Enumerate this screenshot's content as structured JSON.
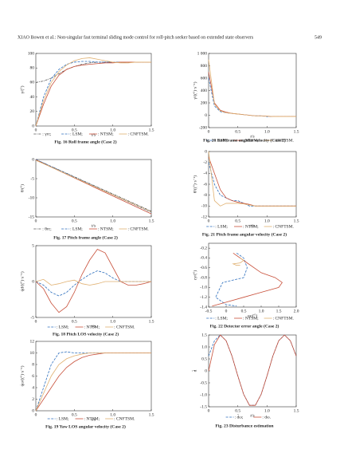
{
  "header": {
    "title": "XIAO Bowen et al.: Non-singular fast terminal sliding mode control for roll-pitch seeker based on extended state observers",
    "page": "549"
  },
  "chart_data": [
    {
      "type": "line",
      "caption": "Fig. 16   Roll frame angle (Case 2)",
      "xlabel": "t/s",
      "ylabel": "γ/(°)",
      "x": [
        0,
        0.1,
        0.2,
        0.3,
        0.4,
        0.5,
        0.6,
        0.7,
        0.8,
        0.9,
        1.0,
        1.1,
        1.2,
        1.3,
        1.4,
        1.5
      ],
      "series": [
        {
          "name": ": γrc;",
          "color": "#555555",
          "style": "dashdot",
          "values": [
            60,
            62,
            66,
            72,
            78,
            82,
            85,
            87,
            88,
            88,
            88,
            88,
            88,
            88,
            88,
            88
          ]
        },
        {
          "name": ": LSM;",
          "color": "#2e6fbd",
          "style": "dashed",
          "values": [
            0,
            40,
            65,
            78,
            85,
            88,
            89,
            89,
            88,
            88,
            88,
            88,
            88,
            88,
            88,
            88
          ]
        },
        {
          "name": ": NTSM;",
          "color": "#c8503a",
          "style": "solid",
          "values": [
            0,
            30,
            55,
            70,
            78,
            82,
            84,
            85,
            86,
            87,
            87,
            88,
            88,
            88,
            88,
            88
          ]
        },
        {
          "name": ": CNFTSM.",
          "color": "#e0b070",
          "style": "solid",
          "values": [
            0,
            35,
            60,
            75,
            84,
            90,
            93,
            94,
            92,
            90,
            88,
            87,
            87,
            88,
            88,
            88
          ]
        }
      ],
      "xlim": [
        0,
        1.5
      ],
      "xticks": [
        0,
        0.5,
        {
          "value": 1,
          "label": "1.0"
        },
        1.5
      ],
      "ylim": [
        0,
        100
      ],
      "yticks": [
        0,
        20,
        40,
        60,
        80,
        100
      ]
    },
    {
      "type": "line",
      "caption": "Fig. 17   Pitch frame angle (Case 2)",
      "xlabel": "t/s",
      "ylabel": "θ/(°)",
      "x": [
        0,
        0.1,
        0.2,
        0.3,
        0.4,
        0.5,
        0.6,
        0.7,
        0.8,
        0.9,
        1.0,
        1.1,
        1.2,
        1.3,
        1.4,
        1.5
      ],
      "series": [
        {
          "name": ": θrc;",
          "color": "#555555",
          "style": "dashdot",
          "values": [
            0,
            -0.9,
            -1.8,
            -2.7,
            -3.6,
            -4.5,
            -5.4,
            -6.3,
            -7.2,
            -8.1,
            -9,
            -9.9,
            -10.8,
            -11.7,
            -12.6,
            -13.5
          ]
        },
        {
          "name": ": LSM;",
          "color": "#2e6fbd",
          "style": "dashed",
          "values": [
            0,
            -0.92,
            -1.84,
            -2.76,
            -3.68,
            -4.6,
            -5.52,
            -6.44,
            -7.36,
            -8.28,
            -9.2,
            -10.12,
            -11.04,
            -11.96,
            -12.88,
            -13.8
          ]
        },
        {
          "name": ": NTSM;",
          "color": "#c8503a",
          "style": "solid",
          "values": [
            -0.1,
            -1.04,
            -1.98,
            -2.92,
            -3.86,
            -4.8,
            -5.74,
            -6.68,
            -7.62,
            -8.56,
            -9.5,
            -10.44,
            -11.38,
            -12.32,
            -13.26,
            -14.2
          ]
        },
        {
          "name": ": CNFTSM.",
          "color": "#e0b070",
          "style": "solid",
          "values": [
            -0.2,
            -1.1,
            -2,
            -2.9,
            -3.8,
            -4.7,
            -5.6,
            -6.5,
            -7.4,
            -8.3,
            -9.2,
            -10.1,
            -11,
            -11.9,
            -12.8,
            -13.7
          ]
        }
      ],
      "xlim": [
        0,
        1.5
      ],
      "xticks": [
        0,
        0.5,
        {
          "value": 1,
          "label": "1.0"
        },
        1.5
      ],
      "ylim": [
        -15,
        0
      ],
      "yticks": [
        -15,
        -10,
        -5,
        0
      ]
    },
    {
      "type": "line",
      "caption": "Fig. 18   Pitch LOS velocity (Case 2)",
      "xlabel": "t/s",
      "ylabel": "q̇d/((°)·s⁻¹)",
      "x": [
        0,
        0.1,
        0.2,
        0.3,
        0.4,
        0.5,
        0.6,
        0.7,
        0.8,
        0.9,
        1.0,
        1.1,
        1.2,
        1.3,
        1.4,
        1.5
      ],
      "series": [
        {
          "name": ": LSM;",
          "color": "#2e6fbd",
          "style": "dashed",
          "values": [
            0,
            -0.5,
            -1.5,
            -2,
            -1.5,
            -0.5,
            0.3,
            1,
            1.5,
            1.2,
            0.5,
            0,
            0,
            0,
            0,
            0
          ]
        },
        {
          "name": ": NTSM;",
          "color": "#c8503a",
          "style": "solid",
          "values": [
            0,
            -1,
            -3,
            -4.3,
            -3.5,
            -1.5,
            1,
            3,
            4.5,
            4,
            2,
            0,
            -0.5,
            -0.5,
            -0.3,
            0
          ]
        },
        {
          "name": ": CNFTSM.",
          "color": "#e0b070",
          "style": "solid",
          "values": [
            0,
            0.3,
            -0.5,
            -0.3,
            0,
            0.2,
            -0.3,
            -0.5,
            -0.3,
            0,
            0,
            0,
            0,
            0,
            0,
            0
          ]
        }
      ],
      "xlim": [
        0,
        1.5
      ],
      "xticks": [
        0,
        0.5,
        {
          "value": 1,
          "label": "1.0"
        },
        1.5
      ],
      "ylim": [
        -5,
        5
      ],
      "yticks": [
        -5,
        0,
        5
      ]
    },
    {
      "type": "line",
      "caption": "Fig. 19   Yaw LOS angular velocity (Case 2)",
      "xlabel": "t/s",
      "ylabel": "q̇ω/((°)·s⁻¹)",
      "x": [
        0,
        0.1,
        0.2,
        0.3,
        0.4,
        0.5,
        0.6,
        0.7,
        0.8,
        0.9,
        1.0,
        1.1,
        1.2,
        1.3,
        1.4,
        1.5
      ],
      "series": [
        {
          "name": ": LSM;",
          "color": "#2e6fbd",
          "style": "dashed",
          "values": [
            0,
            4,
            8,
            10,
            10.2,
            10,
            10,
            10,
            10,
            10,
            10,
            10,
            10,
            10,
            10,
            10
          ]
        },
        {
          "name": ": NTSM;",
          "color": "#c8503a",
          "style": "solid",
          "values": [
            0,
            2,
            4,
            6,
            7.5,
            8.5,
            9.2,
            9.6,
            9.8,
            10,
            10,
            10,
            10,
            10,
            10,
            10
          ]
        },
        {
          "name": ": CNFTSM.",
          "color": "#e0b070",
          "style": "solid",
          "values": [
            0,
            3,
            6,
            8,
            9,
            9.5,
            9.8,
            10,
            10,
            10,
            10,
            10,
            10,
            10,
            10,
            10
          ]
        }
      ],
      "xlim": [
        0,
        1.5
      ],
      "xticks": [
        0,
        0.5,
        {
          "value": 1,
          "label": "1.0"
        },
        1.5
      ],
      "ylim": [
        0,
        12
      ],
      "yticks": [
        0,
        2,
        4,
        6,
        8,
        10,
        12
      ]
    },
    {
      "type": "line",
      "caption": "Fig. 20   Roll frame angular velocity (Case 2)",
      "xlabel": "t/s",
      "ylabel": "γ̇/((°)·s⁻¹)",
      "x": [
        0,
        0.1,
        0.2,
        0.3,
        0.4,
        0.5,
        0.6,
        0.7,
        0.8,
        0.9,
        1.0,
        1.1,
        1.2,
        1.3,
        1.4,
        1.5
      ],
      "series": [
        {
          "name": ": LSM;",
          "color": "#2e6fbd",
          "style": "dashed",
          "values": [
            600,
            150,
            60,
            40,
            30,
            20,
            10,
            0,
            -10,
            -10,
            -20,
            -20,
            -20,
            -20,
            -20,
            -20
          ]
        },
        {
          "name": ": NTSM;",
          "color": "#c8503a",
          "style": "solid",
          "values": [
            700,
            200,
            80,
            50,
            30,
            20,
            10,
            0,
            -10,
            -10,
            -15,
            -20,
            -20,
            -20,
            -20,
            -20
          ]
        },
        {
          "name": ": CNFTSM.",
          "color": "#e0b070",
          "style": "solid",
          "values": [
            900,
            180,
            70,
            40,
            30,
            20,
            10,
            0,
            -10,
            -10,
            -15,
            -20,
            -20,
            -20,
            -20,
            -20
          ]
        }
      ],
      "xlim": [
        0,
        1.5
      ],
      "xticks": [
        0,
        0.5,
        {
          "value": 1,
          "label": "1.0"
        },
        1.5
      ],
      "ylim": [
        -200,
        1000
      ],
      "yticks": [
        -200,
        0,
        200,
        400,
        600,
        800,
        {
          "value": 1000,
          "label": "1 000"
        }
      ]
    },
    {
      "type": "line",
      "caption": "Fig. 21   Pitch frame angular velocity (Case 2)",
      "xlabel": "t/s",
      "ylabel": "θ̇/((°)·s⁻¹)",
      "x": [
        0,
        0.1,
        0.2,
        0.3,
        0.4,
        0.5,
        0.6,
        0.7,
        0.8,
        0.9,
        1.0,
        1.1,
        1.2,
        1.3,
        1.4,
        1.5
      ],
      "series": [
        {
          "name": ": LSM;",
          "color": "#2e6fbd",
          "style": "dashed",
          "values": [
            -2,
            -6,
            -8,
            -8.5,
            -9,
            -9,
            -9.5,
            -10,
            -10,
            -10,
            -10,
            -10,
            -10,
            -10,
            -10,
            -10
          ]
        },
        {
          "name": ": NTSM;",
          "color": "#c8503a",
          "style": "solid",
          "values": [
            -1,
            -4,
            -7,
            -8.5,
            -9,
            -9.3,
            -9.5,
            -9.7,
            -10,
            -10,
            -10,
            -10,
            -10,
            -10,
            -10,
            -10
          ]
        },
        {
          "name": ": CNFTSM.",
          "color": "#e0b070",
          "style": "solid",
          "values": [
            0,
            -9,
            -10,
            -9.5,
            -9.5,
            -9.5,
            -9.6,
            -9.8,
            -10,
            -10,
            -10,
            -10,
            -10,
            -10,
            -10,
            -10
          ]
        }
      ],
      "xlim": [
        0,
        1.5
      ],
      "xticks": [
        0,
        0.5,
        {
          "value": 1,
          "label": "1.0"
        },
        1.5
      ],
      "ylim": [
        -12,
        0
      ],
      "yticks": [
        -12,
        -10,
        -8,
        -6,
        -4,
        -2,
        0
      ]
    },
    {
      "type": "line",
      "caption": "Fig. 22   Detector error angle (Case 2)",
      "xlabel": "εx/(°)",
      "ylabel": "εy/(°)",
      "series": [
        {
          "name": ": LSM;",
          "color": "#2e6fbd",
          "style": "dashed",
          "x": [
            0.3,
            0.5,
            0.6,
            0.5,
            0.2,
            -0.1,
            -0.3,
            0,
            0.3
          ],
          "values": [
            -0.3,
            -0.4,
            -0.6,
            -0.8,
            -0.85,
            -0.9,
            -1.2,
            -1.35,
            -1.38
          ]
        },
        {
          "name": ": NTSM;",
          "color": "#c8503a",
          "style": "solid",
          "x": [
            0.2,
            0.6,
            1.0,
            1.4,
            1.6,
            1.5,
            1.0,
            0.5,
            0,
            -0.4
          ],
          "values": [
            -0.3,
            -0.5,
            -0.7,
            -0.8,
            -0.9,
            -1.0,
            -1.1,
            -1.2,
            -1.3,
            -1.38
          ]
        },
        {
          "name": ": CNFTSM.",
          "color": "#e0b070",
          "style": "solid",
          "x": [
            0.4,
            0.5,
            0.4,
            0.2,
            0.3,
            0.4
          ],
          "values": [
            -0.4,
            -0.45,
            -0.5,
            -0.52,
            -0.55,
            -0.55
          ]
        }
      ],
      "xlim": [
        -0.5,
        2
      ],
      "xticks": [
        -0.5,
        0,
        0.5,
        {
          "value": 1,
          "label": "1.0"
        },
        1.5,
        {
          "value": 2,
          "label": "2.0"
        }
      ],
      "ylim": [
        -1.4,
        -0.1
      ],
      "yticks": [
        -1.4,
        -1.2,
        {
          "value": -1,
          "label": "-1.0"
        },
        -0.8,
        -0.6,
        -0.4,
        -0.2
      ]
    },
    {
      "type": "line",
      "caption": "Fig. 23   Disturbance estimation",
      "xlabel": "t/s",
      "ylabel": "d̂",
      "x": [
        0,
        0.1,
        0.2,
        0.3,
        0.4,
        0.5,
        0.6,
        0.7,
        0.8,
        0.9,
        1.0,
        1.1,
        1.2,
        1.3,
        1.4,
        1.5
      ],
      "series": [
        {
          "name": ": d̂ω;",
          "color": "#2e6fbd",
          "style": "dashed",
          "values": [
            0.62,
            1.26,
            1.5,
            1.26,
            0.62,
            -0.21,
            -0.98,
            -1.44,
            -1.44,
            -0.98,
            -0.21,
            0.62,
            1.26,
            1.5,
            1.26,
            0.62
          ]
        },
        {
          "name": ": dω.",
          "color": "#c8503a",
          "style": "solid",
          "values": [
            0,
            1.1,
            1.5,
            1.26,
            0.62,
            -0.21,
            -0.98,
            -1.44,
            -1.44,
            -0.98,
            -0.21,
            0.62,
            1.26,
            1.5,
            1.26,
            0.62
          ]
        }
      ],
      "xlim": [
        0,
        1.5
      ],
      "xticks": [
        0,
        0.5,
        {
          "value": 1,
          "label": "1.0"
        },
        1.5
      ],
      "ylim": [
        -1.5,
        1.5
      ],
      "yticks": [
        -1.5,
        {
          "value": -1,
          "label": "-1.0"
        },
        -0.5,
        0,
        0.5,
        {
          "value": 1,
          "label": "1.0"
        },
        1.5
      ]
    }
  ]
}
